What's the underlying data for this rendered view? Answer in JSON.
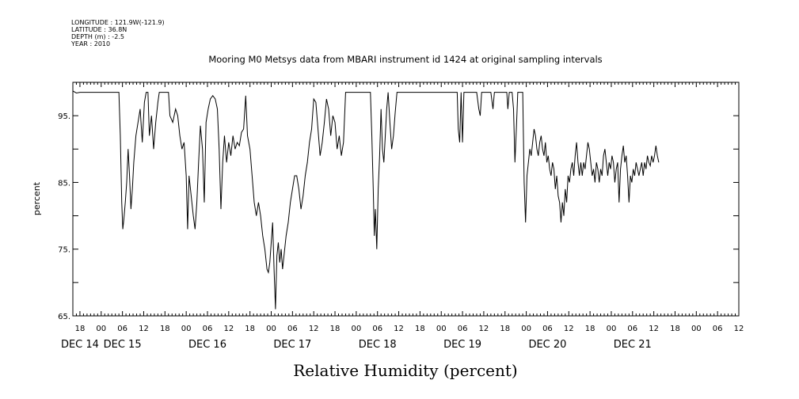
{
  "header": {
    "longitude": "LONGITUDE : 121.9W(-121.9)",
    "latitude": "LATITUDE : 36.8N",
    "depth": "DEPTH (m) : -2.5",
    "year": "YEAR : 2010"
  },
  "chart_data": {
    "type": "line",
    "title": "Mooring M0 Metsys data from MBARI instrument id 1424 at original sampling intervals",
    "xlabel": "Relative Humidity (percent)",
    "ylabel": "percent",
    "ylim": [
      65,
      100
    ],
    "yticks": [
      65,
      75,
      85,
      95
    ],
    "yticks_labels": [
      "65.",
      "75.",
      "85.",
      "95."
    ],
    "xlim_hours": [
      -8,
      180
    ],
    "hour_tick_labels": [
      {
        "h": -6,
        "label": "18"
      },
      {
        "h": 0,
        "label": "00"
      },
      {
        "h": 6,
        "label": "06"
      },
      {
        "h": 12,
        "label": "12"
      },
      {
        "h": 18,
        "label": "18"
      },
      {
        "h": 24,
        "label": "00"
      },
      {
        "h": 30,
        "label": "06"
      },
      {
        "h": 36,
        "label": "12"
      },
      {
        "h": 42,
        "label": "18"
      },
      {
        "h": 48,
        "label": "00"
      },
      {
        "h": 54,
        "label": "06"
      },
      {
        "h": 60,
        "label": "12"
      },
      {
        "h": 66,
        "label": "18"
      },
      {
        "h": 72,
        "label": "00"
      },
      {
        "h": 78,
        "label": "06"
      },
      {
        "h": 84,
        "label": "12"
      },
      {
        "h": 90,
        "label": "18"
      },
      {
        "h": 96,
        "label": "00"
      },
      {
        "h": 102,
        "label": "06"
      },
      {
        "h": 108,
        "label": "12"
      },
      {
        "h": 114,
        "label": "18"
      },
      {
        "h": 120,
        "label": "00"
      },
      {
        "h": 126,
        "label": "06"
      },
      {
        "h": 132,
        "label": "12"
      },
      {
        "h": 138,
        "label": "18"
      },
      {
        "h": 144,
        "label": "00"
      },
      {
        "h": 150,
        "label": "06"
      },
      {
        "h": 156,
        "label": "12"
      },
      {
        "h": 162,
        "label": "18"
      },
      {
        "h": 168,
        "label": "00"
      },
      {
        "h": 174,
        "label": "06"
      },
      {
        "h": 180,
        "label": "12"
      }
    ],
    "day_labels": [
      {
        "h": -6,
        "label": "DEC 14"
      },
      {
        "h": 6,
        "label": "DEC 15"
      },
      {
        "h": 30,
        "label": "DEC 16"
      },
      {
        "h": 54,
        "label": "DEC 17"
      },
      {
        "h": 78,
        "label": "DEC 18"
      },
      {
        "h": 102,
        "label": "DEC 19"
      },
      {
        "h": 126,
        "label": "DEC 20"
      },
      {
        "h": 150,
        "label": "DEC 21"
      }
    ],
    "series": [
      {
        "line_color": "#000000",
        "points": [
          [
            -8,
            98.7
          ],
          [
            -7,
            98.4
          ],
          [
            -6,
            98.5
          ],
          [
            -4,
            98.5
          ],
          [
            0,
            98.5
          ],
          [
            4,
            98.5
          ],
          [
            5,
            98.5
          ],
          [
            5.4,
            92
          ],
          [
            5.8,
            82
          ],
          [
            6.1,
            78
          ],
          [
            6.4,
            79.5
          ],
          [
            6.8,
            82
          ],
          [
            7.2,
            85
          ],
          [
            7.6,
            90
          ],
          [
            8,
            86
          ],
          [
            8.4,
            81
          ],
          [
            8.8,
            84
          ],
          [
            9.2,
            88
          ],
          [
            9.8,
            92
          ],
          [
            10.4,
            94
          ],
          [
            11,
            96
          ],
          [
            11.6,
            91
          ],
          [
            12.2,
            97
          ],
          [
            12.7,
            98.5
          ],
          [
            13.2,
            98.5
          ],
          [
            13.6,
            92
          ],
          [
            14.2,
            95
          ],
          [
            14.8,
            90
          ],
          [
            15.4,
            94
          ],
          [
            16,
            97
          ],
          [
            16.4,
            98.5
          ],
          [
            18,
            98.5
          ],
          [
            19,
            98.5
          ],
          [
            19.4,
            95
          ],
          [
            20.2,
            94
          ],
          [
            21,
            96
          ],
          [
            21.6,
            95
          ],
          [
            22.2,
            92
          ],
          [
            22.8,
            90
          ],
          [
            23.4,
            91
          ],
          [
            24,
            86
          ],
          [
            24.4,
            78
          ],
          [
            24.8,
            86
          ],
          [
            25.2,
            84
          ],
          [
            25.6,
            82
          ],
          [
            26,
            80
          ],
          [
            26.5,
            78
          ],
          [
            27,
            82
          ],
          [
            27.5,
            88
          ],
          [
            28,
            93.5
          ],
          [
            28.6,
            90
          ],
          [
            29.1,
            82
          ],
          [
            29.6,
            94
          ],
          [
            30.2,
            96
          ],
          [
            30.8,
            97.5
          ],
          [
            31.5,
            98
          ],
          [
            32.2,
            97.5
          ],
          [
            32.8,
            96
          ],
          [
            33.3,
            90
          ],
          [
            33.8,
            81
          ],
          [
            34.3,
            88
          ],
          [
            34.8,
            92
          ],
          [
            35.4,
            88
          ],
          [
            36,
            91
          ],
          [
            36.6,
            89
          ],
          [
            37.2,
            92
          ],
          [
            37.8,
            90
          ],
          [
            38.4,
            91
          ],
          [
            39,
            90.5
          ],
          [
            39.6,
            92.5
          ],
          [
            40.2,
            93
          ],
          [
            40.8,
            98
          ],
          [
            41.3,
            92
          ],
          [
            42,
            90
          ],
          [
            42.6,
            86
          ],
          [
            43.2,
            82
          ],
          [
            43.8,
            80
          ],
          [
            44.4,
            82
          ],
          [
            45,
            80
          ],
          [
            45.6,
            77
          ],
          [
            46.2,
            75
          ],
          [
            46.8,
            72
          ],
          [
            47.2,
            71.5
          ],
          [
            47.6,
            73
          ],
          [
            48,
            76
          ],
          [
            48.4,
            79
          ],
          [
            48.8,
            72
          ],
          [
            49.2,
            66
          ],
          [
            49.6,
            74
          ],
          [
            50,
            76
          ],
          [
            50.4,
            73
          ],
          [
            50.8,
            75
          ],
          [
            51.2,
            72
          ],
          [
            51.6,
            74
          ],
          [
            52.2,
            77
          ],
          [
            52.8,
            79
          ],
          [
            53.4,
            82
          ],
          [
            54,
            84
          ],
          [
            54.6,
            86
          ],
          [
            55.2,
            86
          ],
          [
            55.8,
            84
          ],
          [
            56.4,
            81
          ],
          [
            57,
            83
          ],
          [
            57.6,
            86
          ],
          [
            58.2,
            88
          ],
          [
            58.8,
            91
          ],
          [
            59.4,
            93
          ],
          [
            60,
            97.5
          ],
          [
            60.6,
            97
          ],
          [
            61.2,
            93
          ],
          [
            61.8,
            89
          ],
          [
            62.4,
            91
          ],
          [
            63,
            94
          ],
          [
            63.6,
            97.5
          ],
          [
            64.2,
            96
          ],
          [
            64.8,
            92
          ],
          [
            65.4,
            95
          ],
          [
            66,
            94
          ],
          [
            66.6,
            90
          ],
          [
            67.2,
            92
          ],
          [
            67.8,
            89
          ],
          [
            68.4,
            91
          ],
          [
            69,
            98.5
          ],
          [
            70,
            98.5
          ],
          [
            73,
            98.5
          ],
          [
            76,
            98.5
          ],
          [
            76.4,
            92
          ],
          [
            76.8,
            84
          ],
          [
            77.1,
            77
          ],
          [
            77.4,
            81
          ],
          [
            77.8,
            75
          ],
          [
            78.2,
            84
          ],
          [
            78.6,
            89
          ],
          [
            79,
            96
          ],
          [
            79.4,
            90
          ],
          [
            79.8,
            88
          ],
          [
            80.2,
            92
          ],
          [
            80.6,
            96
          ],
          [
            81,
            98.5
          ],
          [
            81.5,
            94
          ],
          [
            82,
            90
          ],
          [
            82.5,
            92
          ],
          [
            83,
            95.5
          ],
          [
            83.5,
            98.5
          ],
          [
            86,
            98.5
          ],
          [
            90,
            98.5
          ],
          [
            92,
            98.5
          ],
          [
            96,
            98.5
          ],
          [
            100,
            98.5
          ],
          [
            100.5,
            98.5
          ],
          [
            100.8,
            93
          ],
          [
            101.2,
            91
          ],
          [
            101.6,
            98.5
          ],
          [
            102,
            91
          ],
          [
            102.4,
            98.5
          ],
          [
            104,
            98.5
          ],
          [
            106,
            98.5
          ],
          [
            106.6,
            96
          ],
          [
            107,
            95
          ],
          [
            107.4,
            98.5
          ],
          [
            110,
            98.5
          ],
          [
            110.6,
            96
          ],
          [
            111,
            98.5
          ],
          [
            113,
            98.5
          ],
          [
            114.5,
            98.5
          ],
          [
            114.8,
            96
          ],
          [
            115.2,
            98.5
          ],
          [
            116,
            98.5
          ],
          [
            116.4,
            96
          ],
          [
            116.8,
            88
          ],
          [
            117.2,
            93
          ],
          [
            117.6,
            98.5
          ],
          [
            119,
            98.5
          ],
          [
            119.4,
            85
          ],
          [
            119.8,
            79
          ],
          [
            120.2,
            86
          ],
          [
            120.6,
            88
          ],
          [
            121,
            90
          ],
          [
            121.4,
            89
          ],
          [
            121.8,
            91
          ],
          [
            122.2,
            93
          ],
          [
            122.6,
            92
          ],
          [
            123,
            90
          ],
          [
            123.4,
            89
          ],
          [
            123.8,
            91
          ],
          [
            124.2,
            92
          ],
          [
            124.6,
            90
          ],
          [
            125,
            89
          ],
          [
            125.4,
            91
          ],
          [
            125.8,
            88
          ],
          [
            126.2,
            89
          ],
          [
            126.6,
            87
          ],
          [
            127,
            86
          ],
          [
            127.4,
            88
          ],
          [
            127.8,
            87
          ],
          [
            128.2,
            84
          ],
          [
            128.6,
            86
          ],
          [
            129,
            83
          ],
          [
            129.4,
            82
          ],
          [
            129.8,
            79
          ],
          [
            130.2,
            82
          ],
          [
            130.6,
            80
          ],
          [
            131,
            84
          ],
          [
            131.4,
            82
          ],
          [
            131.8,
            86
          ],
          [
            132.2,
            85
          ],
          [
            132.6,
            87
          ],
          [
            133,
            88
          ],
          [
            133.4,
            86
          ],
          [
            133.8,
            89
          ],
          [
            134.2,
            91
          ],
          [
            134.6,
            88
          ],
          [
            135,
            86
          ],
          [
            135.4,
            88
          ],
          [
            135.8,
            86
          ],
          [
            136.2,
            88
          ],
          [
            136.6,
            87
          ],
          [
            137,
            89
          ],
          [
            137.4,
            91
          ],
          [
            137.8,
            90
          ],
          [
            138.2,
            88
          ],
          [
            138.6,
            86
          ],
          [
            139,
            87
          ],
          [
            139.4,
            85
          ],
          [
            139.8,
            88
          ],
          [
            140.2,
            87
          ],
          [
            140.6,
            85
          ],
          [
            141,
            87
          ],
          [
            141.4,
            86
          ],
          [
            141.8,
            89
          ],
          [
            142.2,
            90
          ],
          [
            142.6,
            88
          ],
          [
            143,
            86
          ],
          [
            143.4,
            88
          ],
          [
            143.8,
            87
          ],
          [
            144.2,
            89
          ],
          [
            144.6,
            88
          ],
          [
            145,
            85
          ],
          [
            145.4,
            87
          ],
          [
            145.8,
            88
          ],
          [
            146.2,
            82
          ],
          [
            146.6,
            87
          ],
          [
            147,
            89
          ],
          [
            147.4,
            90.5
          ],
          [
            147.8,
            88
          ],
          [
            148.2,
            89
          ],
          [
            148.6,
            86
          ],
          [
            149,
            82
          ],
          [
            149.4,
            86
          ],
          [
            149.8,
            85
          ],
          [
            150.2,
            87
          ],
          [
            150.6,
            86
          ],
          [
            151,
            88
          ],
          [
            151.4,
            87
          ],
          [
            151.8,
            86
          ],
          [
            152.2,
            87
          ],
          [
            152.6,
            88
          ],
          [
            153,
            86
          ],
          [
            153.4,
            88
          ],
          [
            153.8,
            87
          ],
          [
            154.2,
            89
          ],
          [
            154.6,
            88
          ],
          [
            155,
            87.5
          ],
          [
            155.4,
            89
          ],
          [
            155.8,
            88
          ],
          [
            156.2,
            89
          ],
          [
            156.6,
            90.5
          ],
          [
            157,
            89
          ],
          [
            157.4,
            88
          ]
        ]
      }
    ]
  }
}
